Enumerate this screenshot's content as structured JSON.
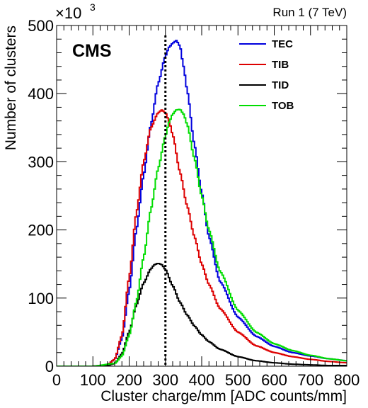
{
  "chart_data": {
    "type": "line",
    "title": "",
    "xlabel": "Cluster charge/mm [ADC counts/mm]",
    "ylabel": "Number of clusters",
    "xlim": [
      0,
      800
    ],
    "ylim": [
      0,
      500
    ],
    "x_ticks": [
      0,
      100,
      200,
      300,
      400,
      500,
      600,
      700,
      800
    ],
    "y_ticks": [
      0,
      100,
      200,
      300,
      400,
      500
    ],
    "y_multiplier": "×10",
    "y_multiplier_exp": "3",
    "grid": false,
    "legend_position": "top-right",
    "run_label": "Run 1 (7 TeV)",
    "experiment_label": "CMS",
    "vertical_line": {
      "x": 300,
      "style": "dotted",
      "color": "#000000"
    },
    "series": [
      {
        "name": "TEC",
        "color": "#0000dd",
        "x": [
          0,
          100,
          140,
          160,
          180,
          200,
          220,
          240,
          260,
          280,
          300,
          310,
          320,
          330,
          340,
          350,
          360,
          380,
          400,
          420,
          450,
          500,
          550,
          600,
          650,
          700,
          750,
          800
        ],
        "y": [
          0,
          0,
          2,
          10,
          40,
          110,
          200,
          280,
          355,
          415,
          455,
          468,
          474,
          478,
          470,
          440,
          405,
          325,
          255,
          190,
          125,
          72,
          44,
          29,
          20,
          15,
          11,
          8
        ]
      },
      {
        "name": "TIB",
        "color": "#dd0000",
        "x": [
          0,
          100,
          140,
          160,
          180,
          200,
          220,
          240,
          260,
          280,
          290,
          300,
          310,
          320,
          340,
          360,
          380,
          400,
          420,
          450,
          500,
          550,
          600,
          650,
          700,
          750,
          800
        ],
        "y": [
          0,
          0,
          2,
          10,
          45,
          130,
          225,
          300,
          350,
          372,
          376,
          372,
          360,
          340,
          285,
          235,
          190,
          150,
          120,
          85,
          50,
          30,
          20,
          14,
          10,
          7,
          5
        ]
      },
      {
        "name": "TID",
        "color": "#000000",
        "x": [
          0,
          100,
          140,
          160,
          180,
          200,
          220,
          240,
          260,
          270,
          280,
          290,
          300,
          320,
          340,
          360,
          380,
          400,
          420,
          450,
          500,
          550,
          600,
          650,
          700,
          750,
          800
        ],
        "y": [
          0,
          0,
          1,
          4,
          18,
          50,
          90,
          122,
          143,
          149,
          151,
          149,
          142,
          118,
          94,
          75,
          59,
          46,
          36,
          25,
          14,
          8,
          5,
          3,
          2,
          1,
          1
        ]
      },
      {
        "name": "TOB",
        "color": "#00dd00",
        "x": [
          0,
          100,
          160,
          180,
          200,
          220,
          240,
          260,
          280,
          300,
          310,
          320,
          330,
          340,
          350,
          360,
          380,
          400,
          420,
          450,
          500,
          550,
          600,
          650,
          700,
          750,
          800
        ],
        "y": [
          0,
          0,
          4,
          15,
          45,
          95,
          160,
          230,
          290,
          338,
          358,
          370,
          376,
          377,
          370,
          355,
          305,
          250,
          200,
          140,
          82,
          50,
          33,
          23,
          16,
          11,
          8
        ]
      }
    ]
  }
}
